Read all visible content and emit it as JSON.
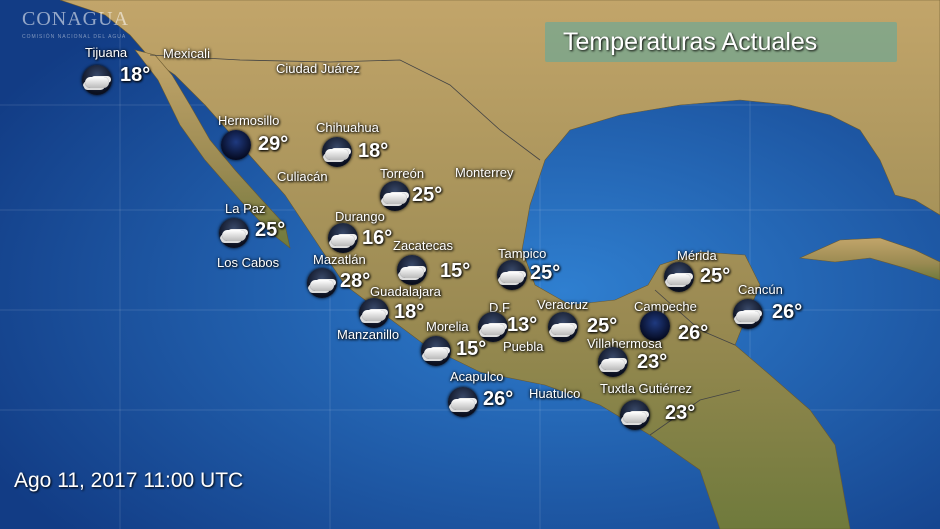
{
  "logo": {
    "text": "CONAGUA",
    "subtitle": "COMISIÓN NACIONAL DEL AGUA"
  },
  "title": "Temperaturas Actuales",
  "timestamp": "Ago 11, 2017 11:00 UTC",
  "colors": {
    "ocean": "#1a4f9a",
    "land": "#b39a5e",
    "title_box": "#5aaaa0"
  },
  "cities": [
    {
      "name": "Tijuana",
      "temp": "18°",
      "icon": "cloudy-icon"
    },
    {
      "name": "Hermosillo",
      "temp": "29°",
      "icon": "clear-night-icon"
    },
    {
      "name": "Chihuahua",
      "temp": "18°",
      "icon": "cloudy-icon"
    },
    {
      "name": "Torreón",
      "temp": "25°",
      "icon": "cloudy-icon"
    },
    {
      "name": "La Paz",
      "temp": "25°",
      "icon": "cloudy-icon"
    },
    {
      "name": "Durango",
      "temp": "16°",
      "icon": "cloudy-icon"
    },
    {
      "name": "Zacatecas",
      "temp": "15°",
      "icon": "cloudy-icon"
    },
    {
      "name": "Tampico",
      "temp": "25°",
      "icon": "cloudy-icon"
    },
    {
      "name": "Mazatlán",
      "temp": "28°",
      "icon": "cloudy-icon"
    },
    {
      "name": "Guadalajara",
      "temp": "18°",
      "icon": "cloudy-icon"
    },
    {
      "name": "D.F",
      "temp": "13°",
      "icon": "cloudy-icon"
    },
    {
      "name": "Veracruz",
      "temp": "25°",
      "icon": "cloudy-icon"
    },
    {
      "name": "Campeche",
      "temp": "26°",
      "icon": "clear-night-icon"
    },
    {
      "name": "Mérida",
      "temp": "25°",
      "icon": "cloudy-icon"
    },
    {
      "name": "Cancún",
      "temp": "26°",
      "icon": "cloudy-icon"
    },
    {
      "name": "Morelia",
      "temp": "15°",
      "icon": "cloudy-icon"
    },
    {
      "name": "Villahermosa",
      "temp": "23°",
      "icon": "cloudy-icon"
    },
    {
      "name": "Acapulco",
      "temp": "26°",
      "icon": "cloudy-icon"
    },
    {
      "name": "Tuxtla Gutiérrez",
      "temp": "23°",
      "icon": "cloudy-icon"
    }
  ],
  "places": [
    "Mexicali",
    "Ciudad Juárez",
    "Culiacán",
    "Monterrey",
    "Los Cabos",
    "Manzanillo",
    "Puebla",
    "Huatulco"
  ]
}
